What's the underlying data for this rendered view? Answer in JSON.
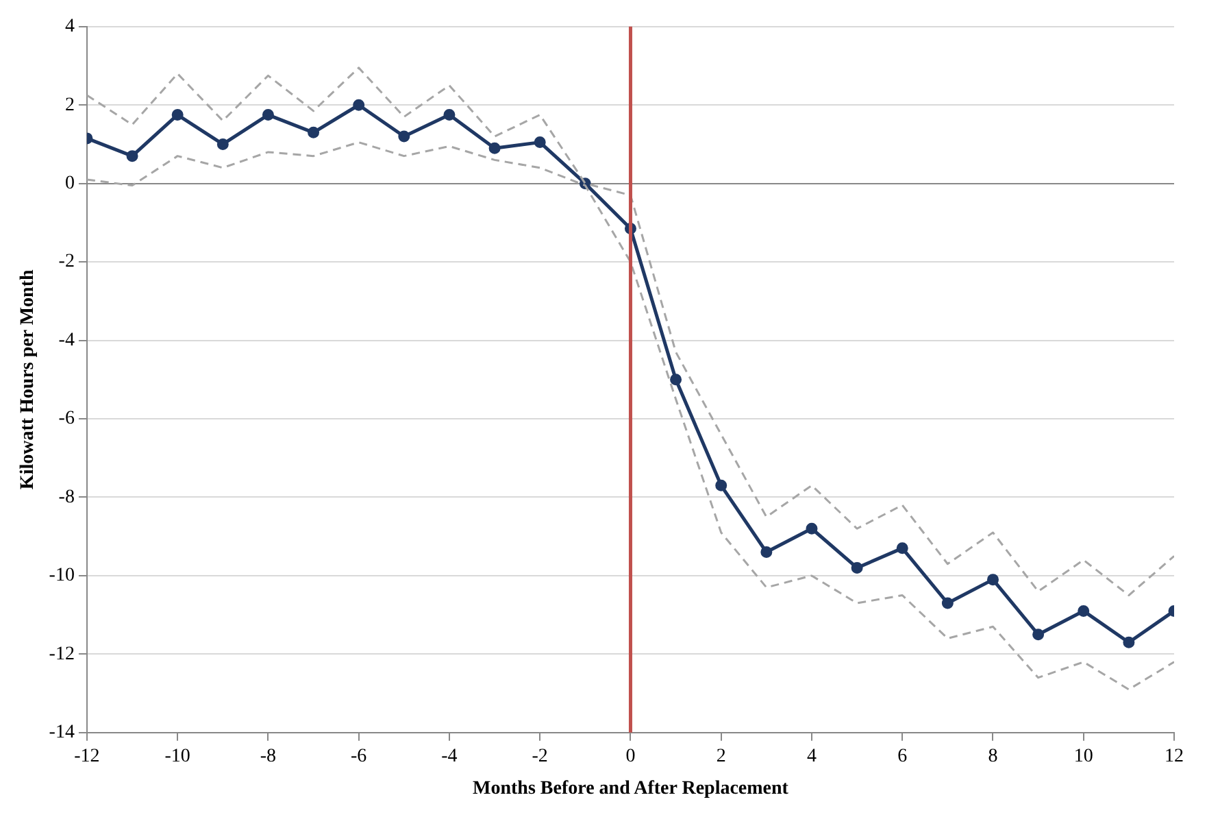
{
  "chart_data": {
    "type": "line",
    "xlabel": "Months Before and After Replacement",
    "ylabel": "Kilowatt Hours per Month",
    "x": [
      -12,
      -11,
      -10,
      -9,
      -8,
      -7,
      -6,
      -5,
      -4,
      -3,
      -2,
      -1,
      0,
      1,
      2,
      3,
      4,
      5,
      6,
      7,
      8,
      9,
      10,
      11,
      12
    ],
    "series": [
      {
        "color": "#a6a6a6",
        "line_style": "dashed",
        "marker": "none",
        "values": [
          2.25,
          1.5,
          2.8,
          1.6,
          2.75,
          1.85,
          2.95,
          1.7,
          2.5,
          1.2,
          1.75,
          0,
          -0.3,
          -4.3,
          -6.4,
          -8.5,
          -7.7,
          -8.8,
          -8.2,
          -9.7,
          -8.9,
          -10.4,
          -9.6,
          -10.5,
          -9.5
        ]
      },
      {
        "color": "#a6a6a6",
        "line_style": "dashed",
        "marker": "none",
        "values": [
          0.1,
          -0.05,
          0.7,
          0.4,
          0.8,
          0.7,
          1.05,
          0.7,
          0.95,
          0.6,
          0.4,
          -0.05,
          -2.0,
          -5.5,
          -8.9,
          -10.3,
          -10.0,
          -10.7,
          -10.5,
          -11.6,
          -11.3,
          -12.6,
          -12.2,
          -12.9,
          -12.2
        ]
      },
      {
        "color": "#1f3864",
        "line_style": "solid",
        "marker": "circle",
        "values": [
          1.15,
          0.7,
          1.75,
          1.0,
          1.75,
          1.3,
          2.0,
          1.2,
          1.75,
          0.9,
          1.05,
          0,
          -1.15,
          -5.0,
          -7.7,
          -9.4,
          -8.8,
          -9.8,
          -9.3,
          -10.7,
          -10.1,
          -11.5,
          -10.9,
          -11.7,
          -10.9
        ]
      }
    ],
    "xlim": [
      -12,
      12
    ],
    "xticks": [
      -12,
      -10,
      -8,
      -6,
      -4,
      -2,
      0,
      2,
      4,
      6,
      8,
      10,
      12
    ],
    "ylim": [
      -14,
      4
    ],
    "yticks": [
      -14,
      -12,
      -10,
      -8,
      -6,
      -4,
      -2,
      0,
      2,
      4
    ],
    "grid": "y",
    "legend": false,
    "ref_lines": [
      {
        "axis": "x",
        "value": 0,
        "color": "#c0504d"
      }
    ]
  }
}
